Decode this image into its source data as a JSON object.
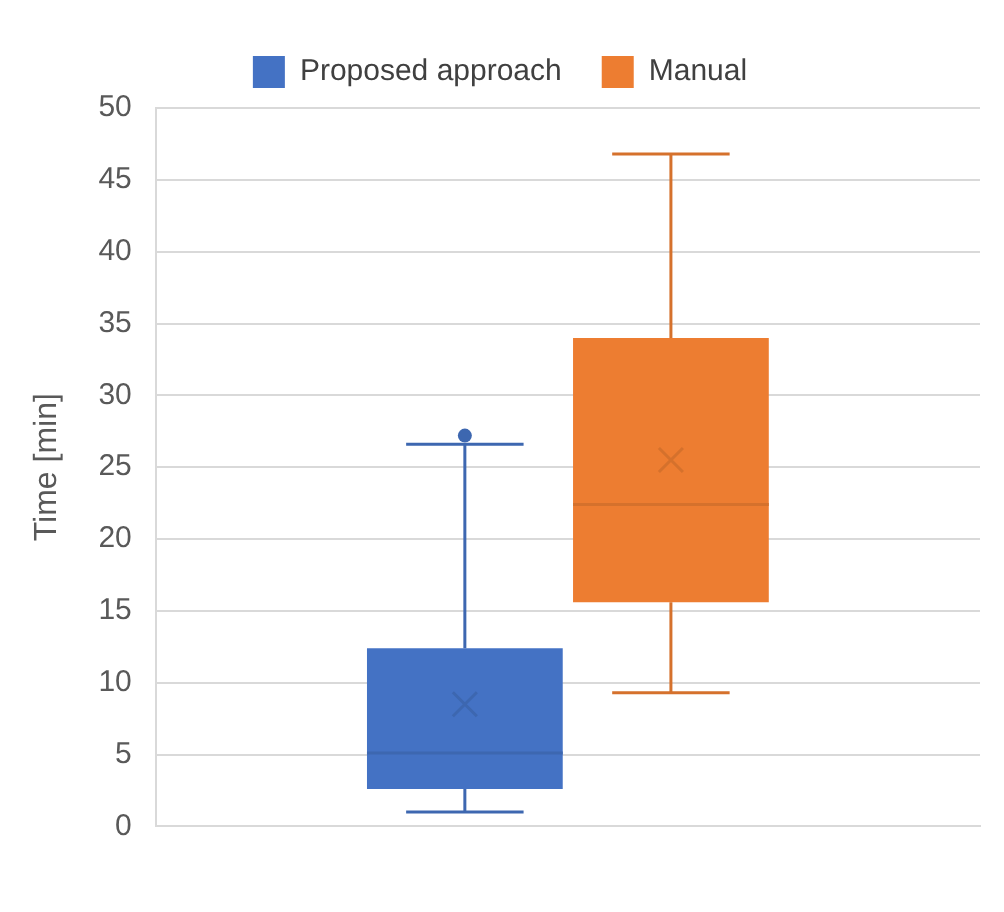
{
  "chart_data": {
    "type": "box",
    "ylabel": "Time [min]",
    "categories": [
      null
    ],
    "series": [
      {
        "name": "Proposed approach",
        "color": "#4472c4",
        "boxes": [
          {
            "low": 1.0,
            "q1": 2.6,
            "median": 5.1,
            "q3": 12.4,
            "high": 26.6,
            "mean": 8.5,
            "outliers": [
              27.2
            ]
          }
        ]
      },
      {
        "name": "Manual",
        "color": "#ed7d31",
        "boxes": [
          {
            "low": 9.3,
            "q1": 15.6,
            "median": 22.4,
            "q3": 34.0,
            "high": 46.8,
            "mean": 25.5
          }
        ]
      }
    ],
    "ylim": [
      0,
      50
    ],
    "yticks": [
      0,
      5,
      10,
      15,
      20,
      25,
      30,
      35,
      40,
      45,
      50
    ],
    "grid": "y",
    "legend": "top"
  }
}
